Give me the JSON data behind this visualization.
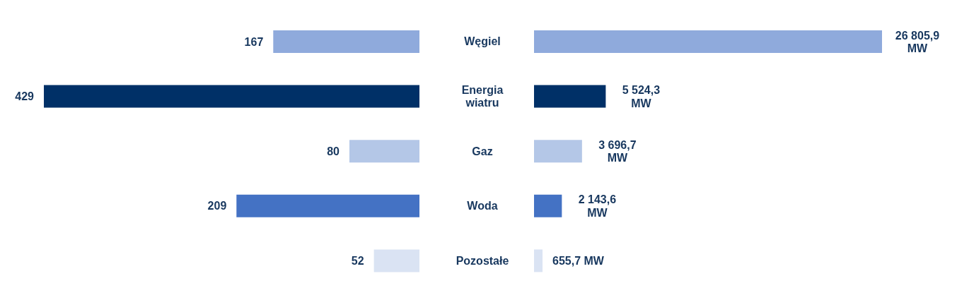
{
  "chart_data": [
    {
      "type": "bar",
      "orientation": "horizontal",
      "categories": [
        "Węgiel",
        "Energia wiatru",
        "Gaz",
        "Woda",
        "Pozostałe"
      ],
      "values": [
        167,
        429,
        80,
        209,
        52
      ],
      "colors": [
        "#8faadc",
        "#003067",
        "#b4c7e7",
        "#4472c4",
        "#dae3f3"
      ],
      "data_labels": true,
      "tick_labels": "y"
    },
    {
      "type": "bar",
      "orientation": "horizontal",
      "categories": [
        null,
        null,
        null,
        null,
        null
      ],
      "values": [
        26805.9,
        5524.3,
        3696.7,
        2143.6,
        655.7
      ],
      "value_labels": [
        "26 805,9 MW",
        "5 524,3 MW",
        "3 696,7 MW",
        "2 143,6 MW",
        "655,7 MW"
      ],
      "colors": [
        "#8faadc",
        "#003067",
        "#b4c7e7",
        "#4472c4",
        "#dae3f3"
      ],
      "tick_labels": false
    }
  ]
}
